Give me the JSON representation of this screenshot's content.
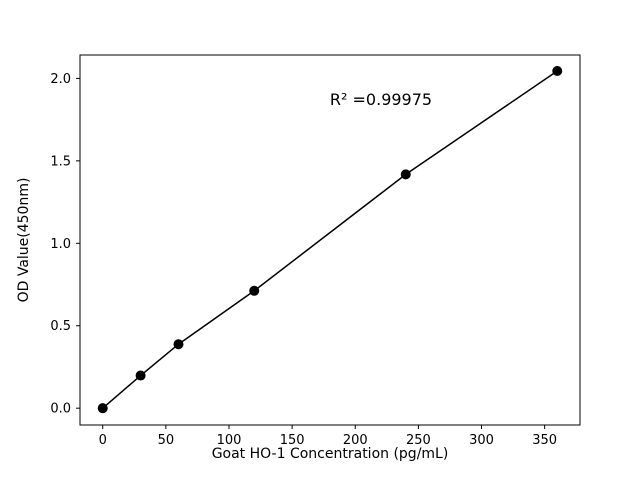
{
  "chart_data": {
    "type": "scatter",
    "title": "",
    "xlabel": "Goat HO-1 Concentration (pg/mL)",
    "ylabel": "OD Value(450nm)",
    "annotation": "R² =0.99975",
    "x": [
      0,
      30,
      60,
      120,
      240,
      360
    ],
    "y": [
      0.0,
      0.198,
      0.388,
      0.712,
      1.418,
      2.045
    ],
    "xlim": [
      -18,
      378
    ],
    "ylim": [
      -0.102,
      2.142
    ],
    "xticks": [
      0,
      50,
      100,
      150,
      200,
      250,
      300,
      350
    ],
    "yticks": [
      0.0,
      0.5,
      1.0,
      1.5,
      2.0
    ],
    "line": true,
    "grid": false,
    "legend": "none",
    "marker_color": "#000000",
    "line_color": "#000000",
    "background": "#ffffff"
  }
}
